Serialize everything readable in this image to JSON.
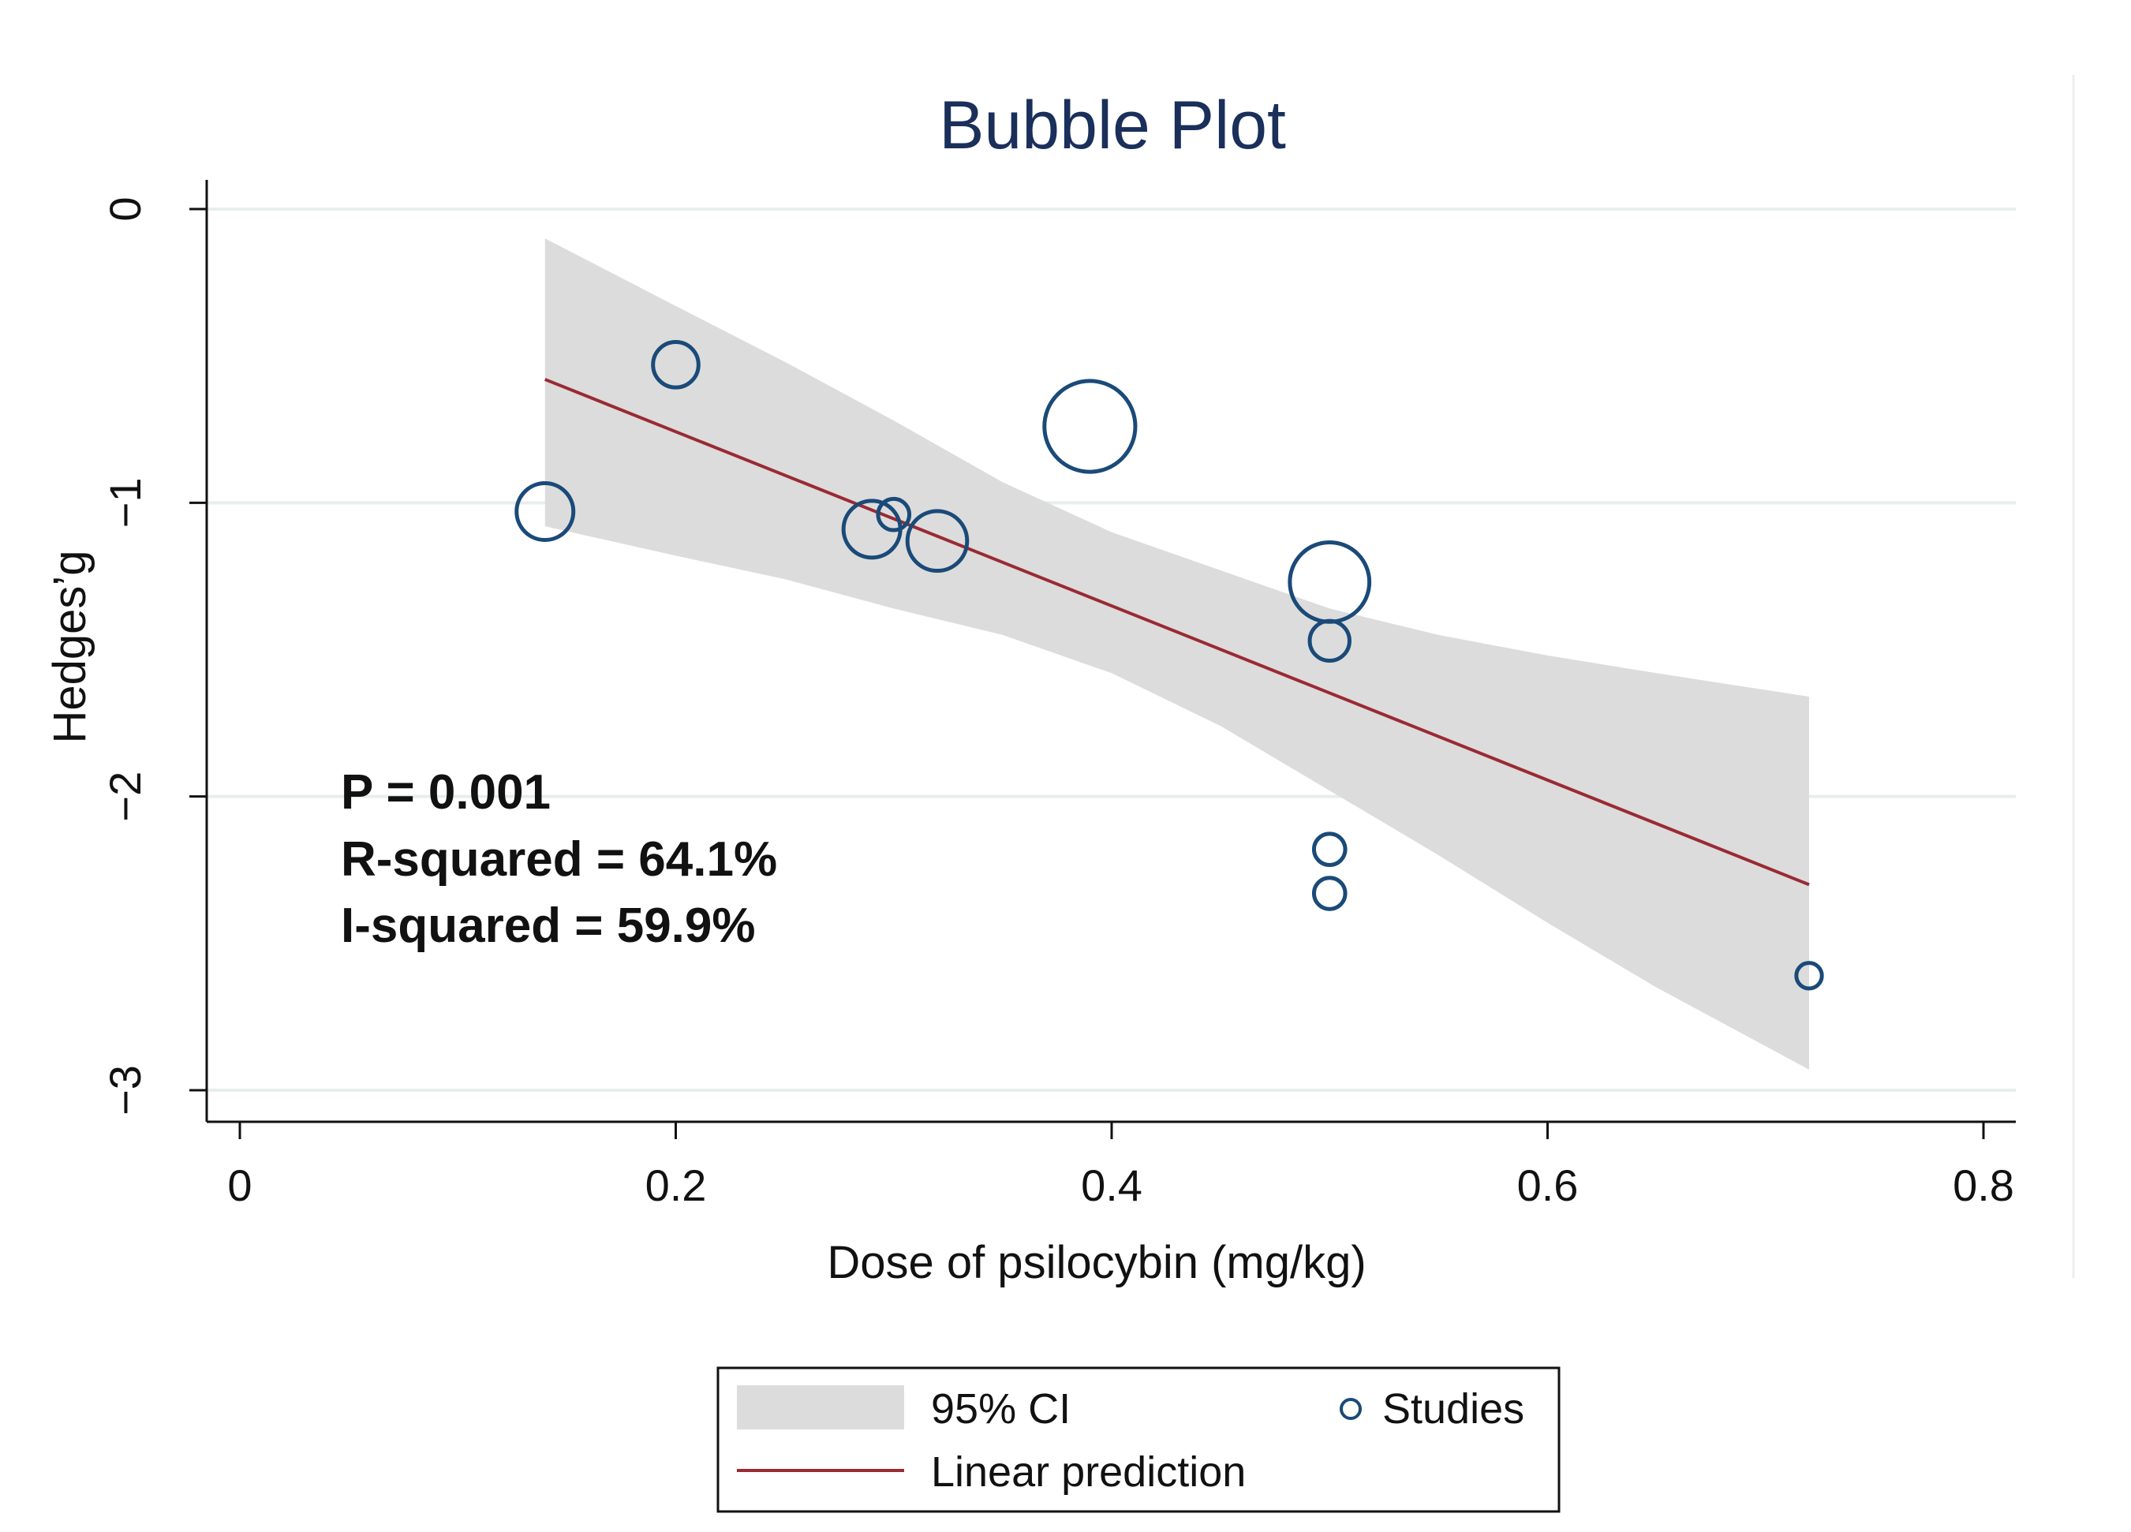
{
  "chart_data": {
    "type": "scatter",
    "title": "Bubble Plot",
    "xlabel": "Dose of psilocybin (mg/kg)",
    "ylabel": "Hedges’g",
    "xlim": [
      0,
      0.8
    ],
    "ylim": [
      -3,
      0
    ],
    "x_ticks": [
      0,
      0.2,
      0.4,
      0.6,
      0.8
    ],
    "x_tick_labels": [
      "0",
      "0.2",
      "0.4",
      "0.6",
      "0.8"
    ],
    "y_ticks": [
      0,
      -1,
      -2,
      -3
    ],
    "y_tick_labels": [
      "0",
      "−1",
      "−2",
      "−3"
    ],
    "grid": "horizontal",
    "studies": [
      {
        "x": 0.14,
        "y": -1.03,
        "weight": 1.0
      },
      {
        "x": 0.2,
        "y": -0.53,
        "weight": 0.8
      },
      {
        "x": 0.29,
        "y": -1.09,
        "weight": 1.0
      },
      {
        "x": 0.3,
        "y": -1.04,
        "weight": 0.55
      },
      {
        "x": 0.32,
        "y": -1.13,
        "weight": 1.05
      },
      {
        "x": 0.39,
        "y": -0.74,
        "weight": 1.6
      },
      {
        "x": 0.5,
        "y": -1.27,
        "weight": 1.4
      },
      {
        "x": 0.5,
        "y": -1.47,
        "weight": 0.7
      },
      {
        "x": 0.5,
        "y": -2.18,
        "weight": 0.55
      },
      {
        "x": 0.5,
        "y": -2.33,
        "weight": 0.55
      },
      {
        "x": 0.72,
        "y": -2.61,
        "weight": 0.45
      }
    ],
    "linear_prediction": [
      {
        "x": 0.14,
        "y": -0.58
      },
      {
        "x": 0.72,
        "y": -2.3
      }
    ],
    "ci_upper": [
      {
        "x": 0.14,
        "y": -0.1
      },
      {
        "x": 0.2,
        "y": -0.33
      },
      {
        "x": 0.25,
        "y": -0.52
      },
      {
        "x": 0.3,
        "y": -0.72
      },
      {
        "x": 0.35,
        "y": -0.93
      },
      {
        "x": 0.4,
        "y": -1.1
      },
      {
        "x": 0.45,
        "y": -1.23
      },
      {
        "x": 0.5,
        "y": -1.36
      },
      {
        "x": 0.55,
        "y": -1.45
      },
      {
        "x": 0.6,
        "y": -1.52
      },
      {
        "x": 0.65,
        "y": -1.58
      },
      {
        "x": 0.72,
        "y": -1.66
      }
    ],
    "ci_lower": [
      {
        "x": 0.14,
        "y": -1.08
      },
      {
        "x": 0.2,
        "y": -1.18
      },
      {
        "x": 0.25,
        "y": -1.26
      },
      {
        "x": 0.3,
        "y": -1.36
      },
      {
        "x": 0.35,
        "y": -1.45
      },
      {
        "x": 0.4,
        "y": -1.58
      },
      {
        "x": 0.45,
        "y": -1.76
      },
      {
        "x": 0.5,
        "y": -1.98
      },
      {
        "x": 0.55,
        "y": -2.2
      },
      {
        "x": 0.6,
        "y": -2.43
      },
      {
        "x": 0.65,
        "y": -2.65
      },
      {
        "x": 0.72,
        "y": -2.93
      }
    ],
    "annotations": [
      "P = 0.001",
      "R-squared = 64.1%",
      "I-squared = 59.9%"
    ],
    "legend": {
      "position": "bottom",
      "items": [
        {
          "label": "95% CI",
          "kind": "band"
        },
        {
          "label": "Studies",
          "kind": "marker"
        },
        {
          "label": "Linear prediction",
          "kind": "line"
        }
      ]
    },
    "colors": {
      "title": "#1a2f5a",
      "marker": "#1a4a78",
      "line": "#9a2a33",
      "band": "#dcdcdc",
      "grid": "#e6eeee"
    }
  }
}
